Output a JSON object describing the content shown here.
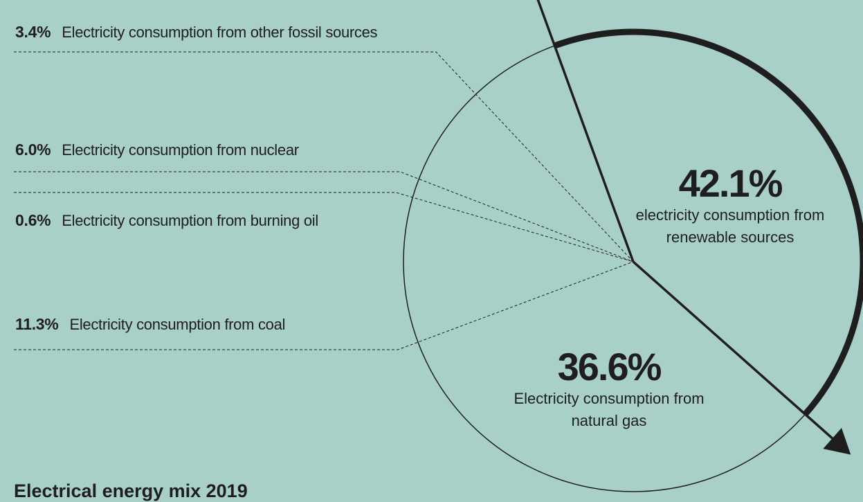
{
  "chart_data": {
    "type": "pie",
    "title": "Electrical energy mix 2019",
    "categories": [
      "electricity consumption from renewable sources",
      "Electricity consumption from natural gas",
      "Electricity consumption from coal",
      "Electricity consumption from burning oil",
      "Electricity consumption from nuclear",
      "Electricity consumption from other fossil sources"
    ],
    "values": [
      42.1,
      36.6,
      11.3,
      0.6,
      6.0,
      3.4
    ],
    "value_labels": [
      "42.1%",
      "36.6%",
      "11.3%",
      "0.6%",
      "6.0%",
      "3.4%"
    ]
  }
}
